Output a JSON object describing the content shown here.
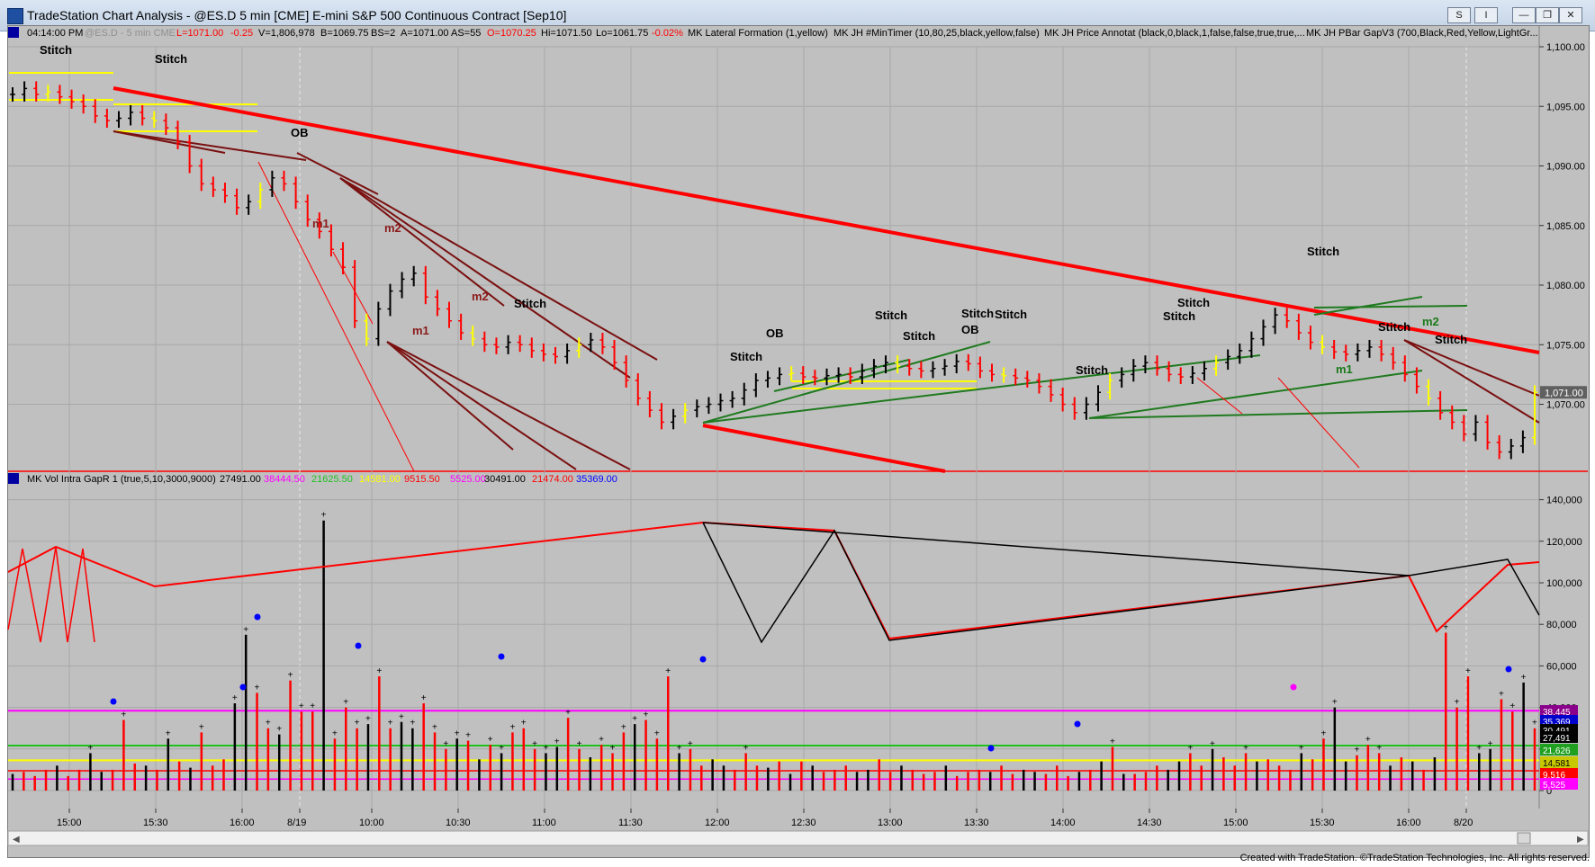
{
  "window": {
    "title": "TradeStation Chart Analysis - @ES.D 5 min [CME] E-mini S&P 500 Continuous Contract [Sep10]",
    "buttons": [
      "S",
      "I",
      "—",
      "❐",
      "✕"
    ]
  },
  "price_status": {
    "time": "04:14:00 PM",
    "symbol": "@ES.D - 5 min  CME",
    "last": "L=1071.00",
    "net": "-0.25",
    "volume": "V=1,806,978",
    "bid": "B=1069.75",
    "bid_size": "BS=2",
    "ask": "A=1071.00",
    "ask_size": "AS=55",
    "open": "O=1070.25",
    "high": "Hi=1071.50",
    "low": "Lo=1061.75",
    "pct": "-0.02%",
    "indicators": [
      "MK Lateral Formation (1,yellow)",
      "MK JH #MinTimer (10,80,25,black,yellow,false)",
      "MK JH Price Annotat (black,0,black,1,false,false,true,true,...",
      "MK JH PBar GapV3 (700,Black,Red,Yellow,LightGr..."
    ]
  },
  "volume_status": {
    "name": "MK Vol Intra GapR 1 (true,5,10,3000,9000)",
    "values": [
      "27491.00",
      "38444.50",
      "21625.50",
      "14581.00",
      "9515.50",
      "5525.00",
      "30491.00",
      "21474.00",
      "35369.00"
    ],
    "colors": [
      "#000000",
      "#ff00ff",
      "#20c020",
      "#ffff00",
      "#ff0000",
      "#ff00ff",
      "#000000",
      "#ff0000",
      "#0000ff"
    ]
  },
  "price_axis": {
    "labels": [
      "1,100.00",
      "1,095.00",
      "1,090.00",
      "1,085.00",
      "1,080.00",
      "1,075.00",
      "1,070.00"
    ],
    "last_marker": "1,071.00"
  },
  "volume_axis": {
    "labels": [
      "140,000",
      "120,000",
      "100,000",
      "80,000",
      "60,000",
      "40,000",
      "20,000",
      "0"
    ],
    "markers": [
      {
        "text": "38,445",
        "color": "#8b008b"
      },
      {
        "text": "35,369",
        "color": "#0000cd"
      },
      {
        "text": "30,491",
        "color": "#000000"
      },
      {
        "text": "27,491",
        "color": "#000000"
      },
      {
        "text": "21,626",
        "color": "#20a020"
      },
      {
        "text": "14,581",
        "color": "#c8c800"
      },
      {
        "text": "9,516",
        "color": "#ff0000"
      },
      {
        "text": "5,525",
        "color": "#ff00ff"
      }
    ]
  },
  "time_axis": [
    "15:00",
    "15:30",
    "16:00",
    "8/19",
    "10:00",
    "10:30",
    "11:00",
    "11:30",
    "12:00",
    "12:30",
    "13:00",
    "13:30",
    "14:00",
    "14:30",
    "15:00",
    "15:30",
    "16:00",
    "8/20"
  ],
  "annotations": [
    {
      "text": "Stitch",
      "x": 0,
      "y": 0,
      "color": "#000000"
    },
    {
      "text": "Stitch",
      "x": 1,
      "y": 1,
      "color": "#000000"
    },
    {
      "text": "OB",
      "x": 2,
      "y": 2,
      "color": "#000000"
    },
    {
      "text": "m1",
      "x": 3,
      "y": 3,
      "color": "#8b1a1a"
    },
    {
      "text": "m2",
      "x": 4,
      "y": 4,
      "color": "#8b1a1a"
    },
    {
      "text": "m1",
      "x": 5,
      "y": 5,
      "color": "#8b1a1a"
    },
    {
      "text": "m2",
      "x": 6,
      "y": 6,
      "color": "#8b1a1a"
    },
    {
      "text": "Stitch",
      "x": 7,
      "y": 7,
      "color": "#000000"
    },
    {
      "text": "Stitch",
      "x": 8,
      "y": 8,
      "color": "#000000"
    },
    {
      "text": "OB",
      "x": 9,
      "y": 9,
      "color": "#000000"
    },
    {
      "text": "Stitch",
      "x": 10,
      "y": 10,
      "color": "#000000"
    },
    {
      "text": "Stitch",
      "x": 11,
      "y": 11,
      "color": "#000000"
    },
    {
      "text": "OB",
      "x": 12,
      "y": 12,
      "color": "#000000"
    },
    {
      "text": "Stitch",
      "x": 13,
      "y": 13,
      "color": "#000000"
    },
    {
      "text": "Stitch",
      "x": 14,
      "y": 14,
      "color": "#000000"
    },
    {
      "text": "Stitch",
      "x": 15,
      "y": 15,
      "color": "#000000"
    },
    {
      "text": "Stitch",
      "x": 16,
      "y": 16,
      "color": "#000000"
    },
    {
      "text": "Stitch",
      "x": 17,
      "y": 17,
      "color": "#000000"
    },
    {
      "text": "Stitch",
      "x": 18,
      "y": 18,
      "color": "#000000"
    },
    {
      "text": "m1",
      "x": 19,
      "y": 19,
      "color": "#1a7a1a"
    },
    {
      "text": "Stitch",
      "x": 20,
      "y": 20,
      "color": "#000000"
    },
    {
      "text": "m2",
      "x": 21,
      "y": 21,
      "color": "#1a7a1a"
    },
    {
      "text": "Stitch",
      "x": 22,
      "y": 22,
      "color": "#000000"
    }
  ],
  "footer": "Created with TradeStation. ©TradeStation Technologies, Inc. All rights reserved."
}
